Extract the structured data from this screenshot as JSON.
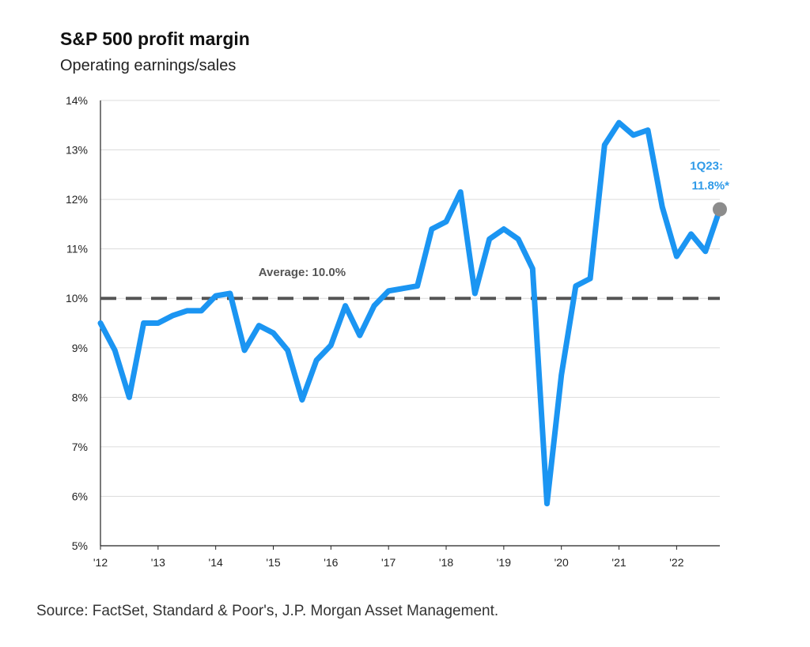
{
  "title": "S&P 500 profit margin",
  "subtitle": "Operating earnings/sales",
  "source": "Source: FactSet, Standard & Poor's, J.P. Morgan Asset Management.",
  "colors": {
    "line": "#1b95f2",
    "average": "#555555",
    "marker": "#8c8c8c",
    "annotation": "#2f9ae8"
  },
  "chart_data": {
    "type": "line",
    "title": "S&P 500 profit margin",
    "subtitle": "Operating earnings/sales",
    "ylim": [
      5,
      14
    ],
    "xlim": [
      2012.0,
      2022.75
    ],
    "y_ticks": [
      "5%",
      "6%",
      "7%",
      "8%",
      "9%",
      "10%",
      "11%",
      "12%",
      "13%",
      "14%"
    ],
    "x_ticks": [
      "'12",
      "'13",
      "'14",
      "'15",
      "'16",
      "'17",
      "'18",
      "'19",
      "'20",
      "'21",
      "'22"
    ],
    "grid": true,
    "series": [
      {
        "x": [
          2012.0,
          2012.25,
          2012.5,
          2012.75,
          2013.0,
          2013.25,
          2013.5,
          2013.75,
          2014.0,
          2014.25,
          2014.5,
          2014.75,
          2015.0,
          2015.25,
          2015.5,
          2015.75,
          2016.0,
          2016.25,
          2016.5,
          2016.75,
          2017.0,
          2017.25,
          2017.5,
          2017.75,
          2018.0,
          2018.25,
          2018.5,
          2018.75,
          2019.0,
          2019.25,
          2019.5,
          2019.75,
          2020.0,
          2020.25,
          2020.5,
          2020.75,
          2021.0,
          2021.25,
          2021.5,
          2021.75,
          2022.0,
          2022.25,
          2022.5,
          2022.75
        ],
        "values": [
          9.5,
          8.95,
          8.0,
          9.5,
          9.5,
          9.65,
          9.75,
          9.75,
          10.05,
          10.1,
          8.95,
          9.45,
          9.3,
          8.95,
          7.95,
          8.75,
          9.05,
          9.85,
          9.25,
          9.85,
          10.15,
          10.2,
          10.25,
          11.4,
          11.55,
          12.15,
          10.1,
          11.2,
          11.4,
          11.2,
          10.6,
          5.85,
          8.45,
          10.25,
          10.4,
          13.1,
          13.55,
          13.3,
          13.4,
          11.85,
          10.85,
          11.3,
          10.95,
          11.8
        ]
      }
    ],
    "average": {
      "value": 10.0,
      "label": "Average: 10.0%"
    },
    "annotation": {
      "line1": "1Q23:",
      "line2": "11.8%*"
    }
  }
}
